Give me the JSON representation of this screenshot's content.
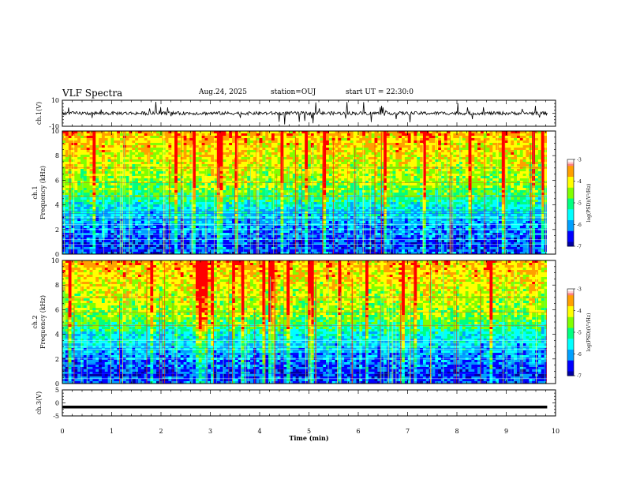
{
  "header": {
    "title": "VLF Spectra",
    "date": "Aug.24, 2025",
    "station": "station=OUJ",
    "start_time": "start UT =  22:30:0"
  },
  "chart_data": [
    {
      "type": "line",
      "panel": "ch1-waveform",
      "ylabel": "ch.1(V)",
      "ylim": [
        -10,
        10
      ],
      "y_ticks": [
        "10",
        "-10"
      ],
      "x_range": [
        0,
        10
      ],
      "x_units": "min",
      "baseline_value": 0,
      "note_values": "noisy signal around 0 V with spikes up to about +/-10 V"
    },
    {
      "type": "heatmap",
      "panel": "ch1-spectrogram",
      "ylabel": "ch.1\nFrequency (kHz)",
      "ylim": [
        0,
        10
      ],
      "y_ticks": [
        "0",
        "2",
        "4",
        "6",
        "8",
        "10"
      ],
      "x_range": [
        0,
        9.83
      ],
      "colorbar": {
        "label": "log(PSD)(V²/Hz)",
        "range": [
          -7,
          -3
        ],
        "ticks": [
          "-3",
          "-4",
          "-5",
          "-6",
          "-7"
        ]
      }
    },
    {
      "type": "heatmap",
      "panel": "ch2-spectrogram",
      "ylabel": "ch.2\nFrequency (kHz)",
      "ylim": [
        0,
        10
      ],
      "y_ticks": [
        "0",
        "2",
        "4",
        "6",
        "8",
        "10"
      ],
      "x_range": [
        0,
        9.83
      ],
      "colorbar": {
        "label": "log(PSD)(V²/Hz)",
        "range": [
          -7,
          -3
        ],
        "ticks": [
          "-3",
          "-4",
          "-5",
          "-6",
          "-7"
        ]
      }
    },
    {
      "type": "line",
      "panel": "ch3-waveform",
      "ylabel": "ch.3(V)",
      "ylim": [
        -5,
        5
      ],
      "y_ticks": [
        "5",
        "0",
        "-5"
      ],
      "x_range": [
        0,
        9.83
      ],
      "constant_value": -1.6
    }
  ],
  "x_axis": {
    "label": "Time (min)",
    "ticks": [
      "0",
      "1",
      "2",
      "3",
      "4",
      "5",
      "6",
      "7",
      "8",
      "9",
      "10"
    ],
    "range": [
      0,
      10
    ]
  },
  "colors": {
    "frame": "#000000",
    "background": "#ffffff"
  },
  "colormap": [
    "#0000a0",
    "#0000ff",
    "#00a0ff",
    "#00ffff",
    "#00ff80",
    "#80ff00",
    "#ffff00",
    "#ffa000",
    "#ff0000",
    "#ffffff"
  ]
}
